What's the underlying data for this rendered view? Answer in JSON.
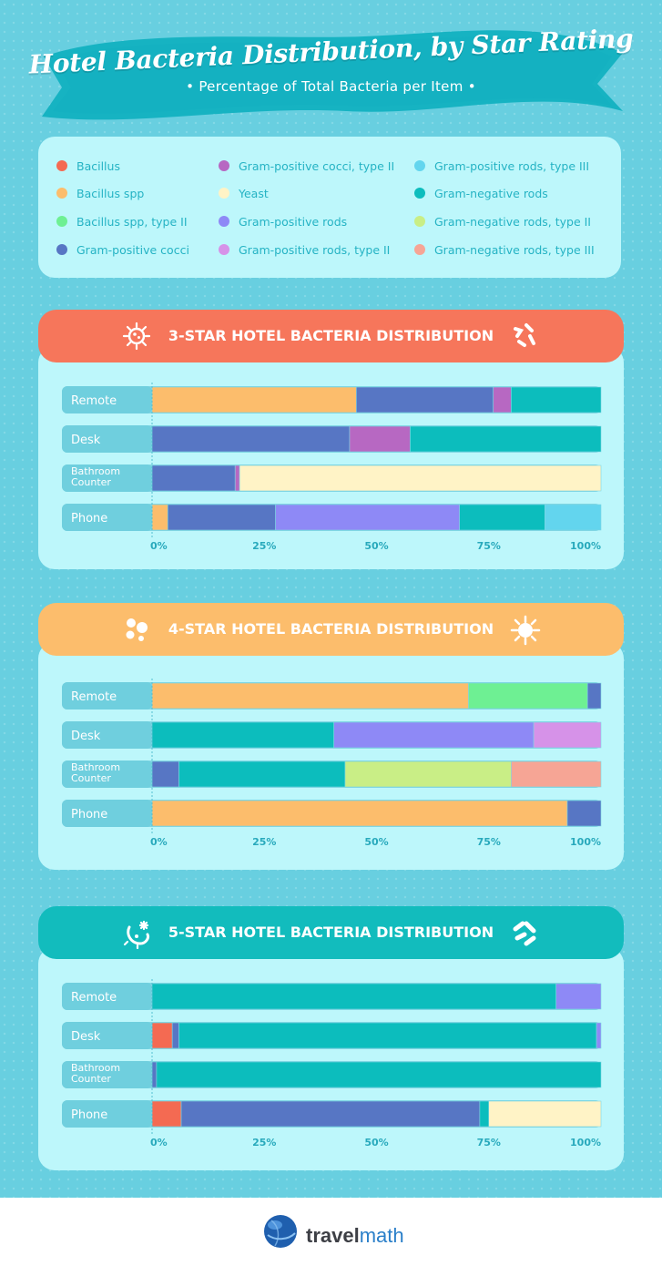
{
  "header": {
    "title": "Hotel Bacteria Distribution, by Star Rating",
    "subtitle": "Percentage of Total Bacteria per Item"
  },
  "legend": [
    {
      "label": "Bacillus",
      "color": "#f46a52"
    },
    {
      "label": "Bacillus spp",
      "color": "#fcbd6c"
    },
    {
      "label": "Bacillus spp, type II",
      "color": "#6ef093"
    },
    {
      "label": "Gram-positive cocci",
      "color": "#5776c4"
    },
    {
      "label": "Gram-positive cocci, type II",
      "color": "#b768c2"
    },
    {
      "label": "Yeast",
      "color": "#fff3c6"
    },
    {
      "label": "Gram-positive rods",
      "color": "#8e89f6"
    },
    {
      "label": "Gram-positive rods, type II",
      "color": "#d692e8"
    },
    {
      "label": "Gram-positive rods, type III",
      "color": "#63d5ee"
    },
    {
      "label": "Gram-negative rods",
      "color": "#0cbdbd"
    },
    {
      "label": "Gram-negative rods, type II",
      "color": "#c9ee86"
    },
    {
      "label": "Gram-negative rods, type III",
      "color": "#f6a595"
    }
  ],
  "panels": [
    {
      "title": "3-STAR HOTEL BACTERIA DISTRIBUTION",
      "color": "#f6765b",
      "icons": [
        "virus-icon",
        "bacteria-rods-icon"
      ]
    },
    {
      "title": "4-STAR HOTEL BACTERIA DISTRIBUTION",
      "color": "#fcbd6c",
      "icons": [
        "spores-icon",
        "germ-icon"
      ]
    },
    {
      "title": "5-STAR HOTEL BACTERIA DISTRIBUTION",
      "color": "#12bcbd",
      "icons": [
        "microbe-icon",
        "capsule-bacteria-icon"
      ]
    }
  ],
  "footer": {
    "brand_a": "travel",
    "brand_b": "math",
    "logo_icon": "globe-icon"
  },
  "chart_data": [
    {
      "type": "bar",
      "orientation": "horizontal",
      "stacked": true,
      "title": "3-STAR HOTEL BACTERIA DISTRIBUTION",
      "categories": [
        "Remote",
        "Desk",
        "Bathroom Counter",
        "Phone"
      ],
      "xlim": [
        0,
        100
      ],
      "ticks": [
        "0%",
        "25%",
        "50%",
        "75%",
        "100%"
      ],
      "series": [
        {
          "name": "Bacillus spp",
          "values": [
            45.5,
            0,
            0,
            3.5
          ]
        },
        {
          "name": "Gram-positive cocci",
          "values": [
            30.5,
            44,
            18.5,
            24
          ]
        },
        {
          "name": "Gram-positive cocci, type II",
          "values": [
            4,
            13.5,
            1,
            0
          ]
        },
        {
          "name": "Yeast",
          "values": [
            0,
            0,
            80.5,
            0
          ]
        },
        {
          "name": "Gram-positive rods",
          "values": [
            0,
            0,
            0,
            41
          ]
        },
        {
          "name": "Gram-negative rods",
          "values": [
            20,
            42.5,
            0,
            19
          ]
        },
        {
          "name": "Gram-positive rods, type III",
          "values": [
            0,
            0,
            0,
            12.5
          ]
        }
      ]
    },
    {
      "type": "bar",
      "orientation": "horizontal",
      "stacked": true,
      "title": "4-STAR HOTEL BACTERIA DISTRIBUTION",
      "categories": [
        "Remote",
        "Desk",
        "Bathroom Counter",
        "Phone"
      ],
      "xlim": [
        0,
        100
      ],
      "ticks": [
        "0%",
        "25%",
        "50%",
        "75%",
        "100%"
      ],
      "series": [
        {
          "name": "Bacillus spp",
          "values": [
            70.5,
            0,
            0,
            92.5
          ]
        },
        {
          "name": "Bacillus spp, type II",
          "values": [
            26.5,
            0,
            0,
            0
          ]
        },
        {
          "name": "Gram-positive cocci",
          "values": [
            3,
            0,
            6,
            7.5
          ]
        },
        {
          "name": "Gram-negative rods",
          "values": [
            0,
            40.5,
            37,
            0
          ]
        },
        {
          "name": "Gram-positive rods",
          "values": [
            0,
            44.5,
            0,
            0
          ]
        },
        {
          "name": "Gram-positive rods, type II",
          "values": [
            0,
            15,
            0,
            0
          ]
        },
        {
          "name": "Gram-negative rods, type II",
          "values": [
            0,
            0,
            37,
            0
          ]
        },
        {
          "name": "Gram-negative rods, type III",
          "values": [
            0,
            0,
            20,
            0
          ]
        }
      ]
    },
    {
      "type": "bar",
      "orientation": "horizontal",
      "stacked": true,
      "title": "5-STAR HOTEL BACTERIA DISTRIBUTION",
      "categories": [
        "Remote",
        "Desk",
        "Bathroom Counter",
        "Phone"
      ],
      "xlim": [
        0,
        100
      ],
      "ticks": [
        "0%",
        "25%",
        "50%",
        "75%",
        "100%"
      ],
      "series": [
        {
          "name": "Bacillus",
          "values": [
            0,
            4.5,
            0,
            6.5
          ]
        },
        {
          "name": "Gram-positive cocci",
          "values": [
            0,
            1.5,
            1,
            66.5
          ]
        },
        {
          "name": "Gram-negative rods",
          "values": [
            90,
            93,
            99,
            2
          ]
        },
        {
          "name": "Gram-positive rods",
          "values": [
            10,
            1,
            0,
            0
          ]
        },
        {
          "name": "Yeast",
          "values": [
            0,
            0,
            0,
            25
          ]
        }
      ]
    }
  ]
}
